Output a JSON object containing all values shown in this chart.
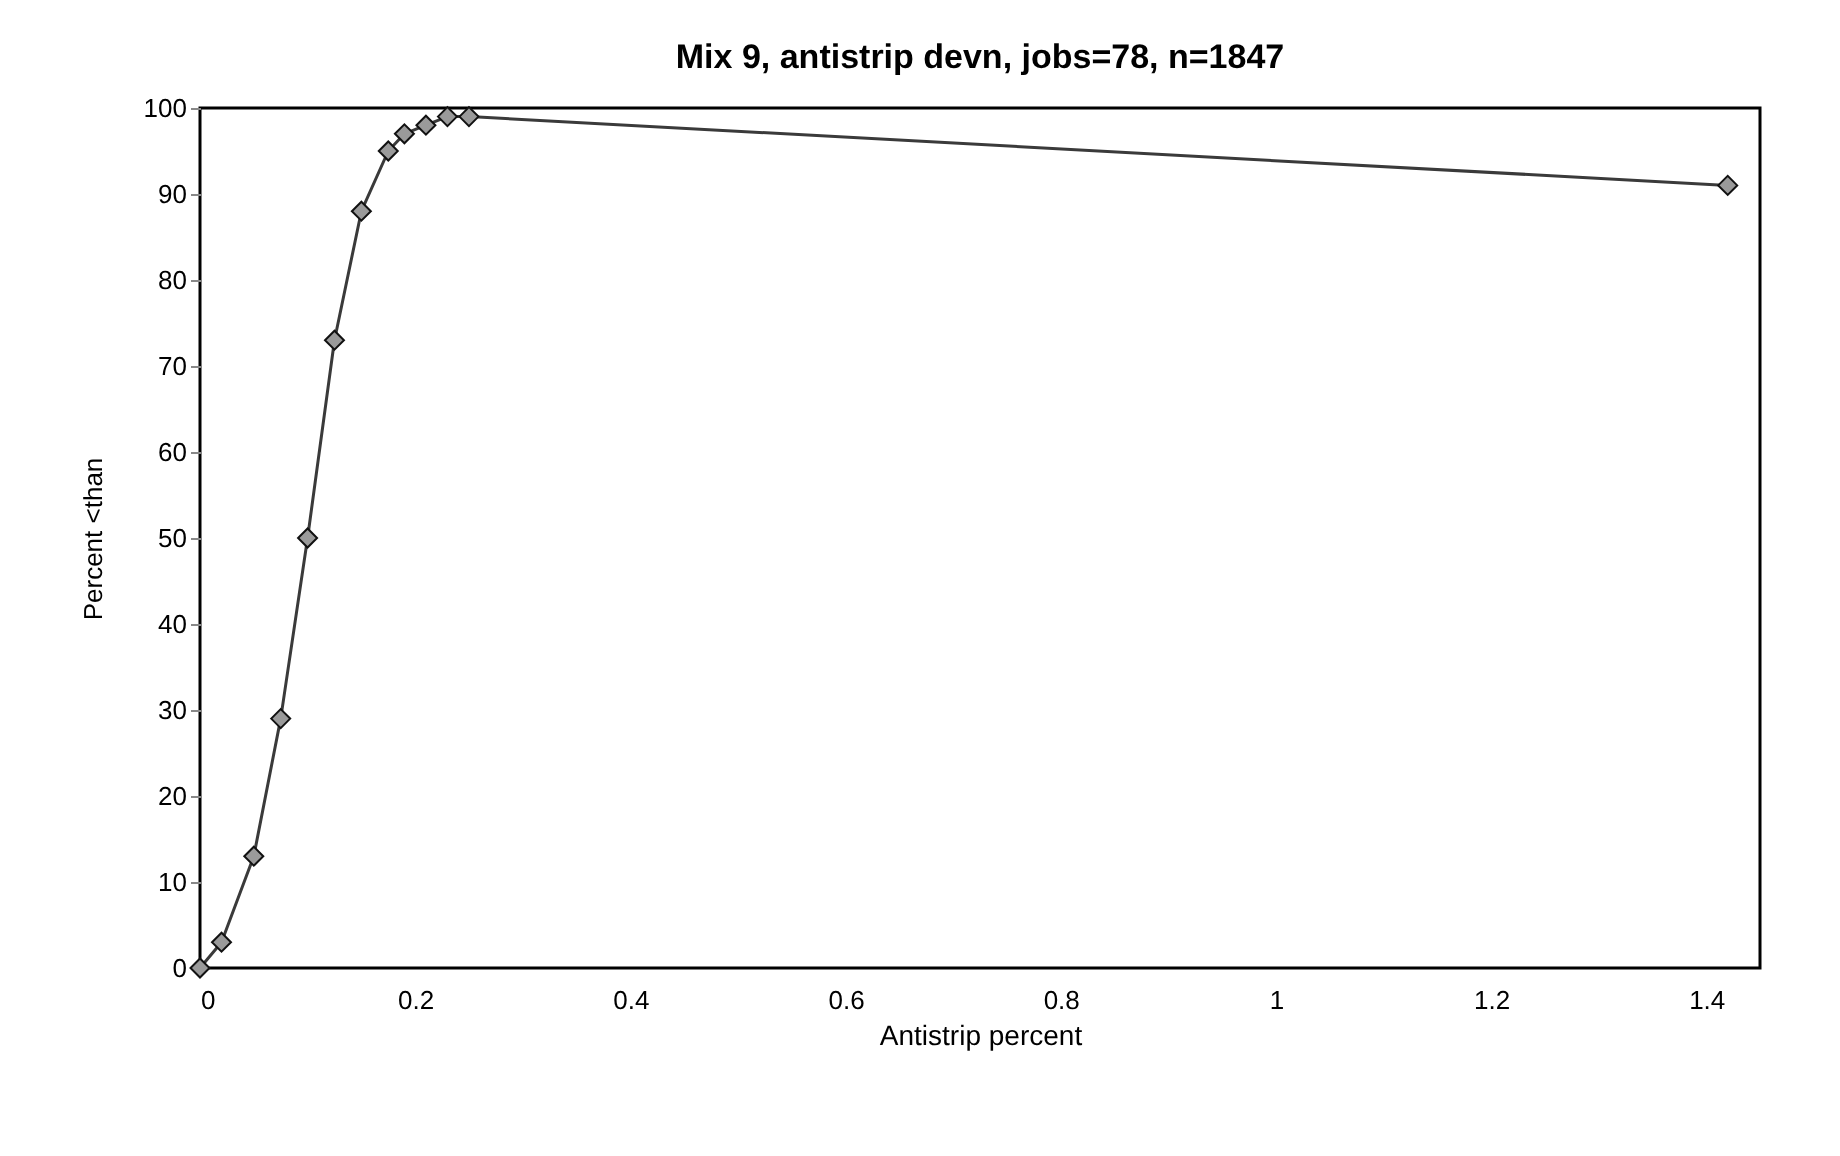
{
  "chart_data": {
    "type": "line",
    "title": "Mix 9, antistrip devn, jobs=78, n=1847",
    "xlabel": "Antistrip percent",
    "ylabel": "Percent <than",
    "x": [
      0,
      0.02,
      0.05,
      0.075,
      0.1,
      0.125,
      0.15,
      0.175,
      0.19,
      0.21,
      0.23,
      0.25,
      1.42
    ],
    "series": [
      {
        "color": "#3a3a3a",
        "values": [
          0,
          3,
          13,
          29,
          50,
          73,
          88,
          95,
          97,
          98,
          99,
          99,
          91
        ]
      }
    ],
    "xlim": [
      0,
      1.45
    ],
    "xticks": [
      0,
      0.2,
      0.4,
      0.6,
      0.8,
      1,
      1.2,
      1.4
    ],
    "ylim": [
      0,
      100
    ],
    "yticks": [
      0,
      10,
      20,
      30,
      40,
      50,
      60,
      70,
      80,
      90,
      100
    ],
    "marker": "diamond",
    "grid": false,
    "legend": false
  }
}
